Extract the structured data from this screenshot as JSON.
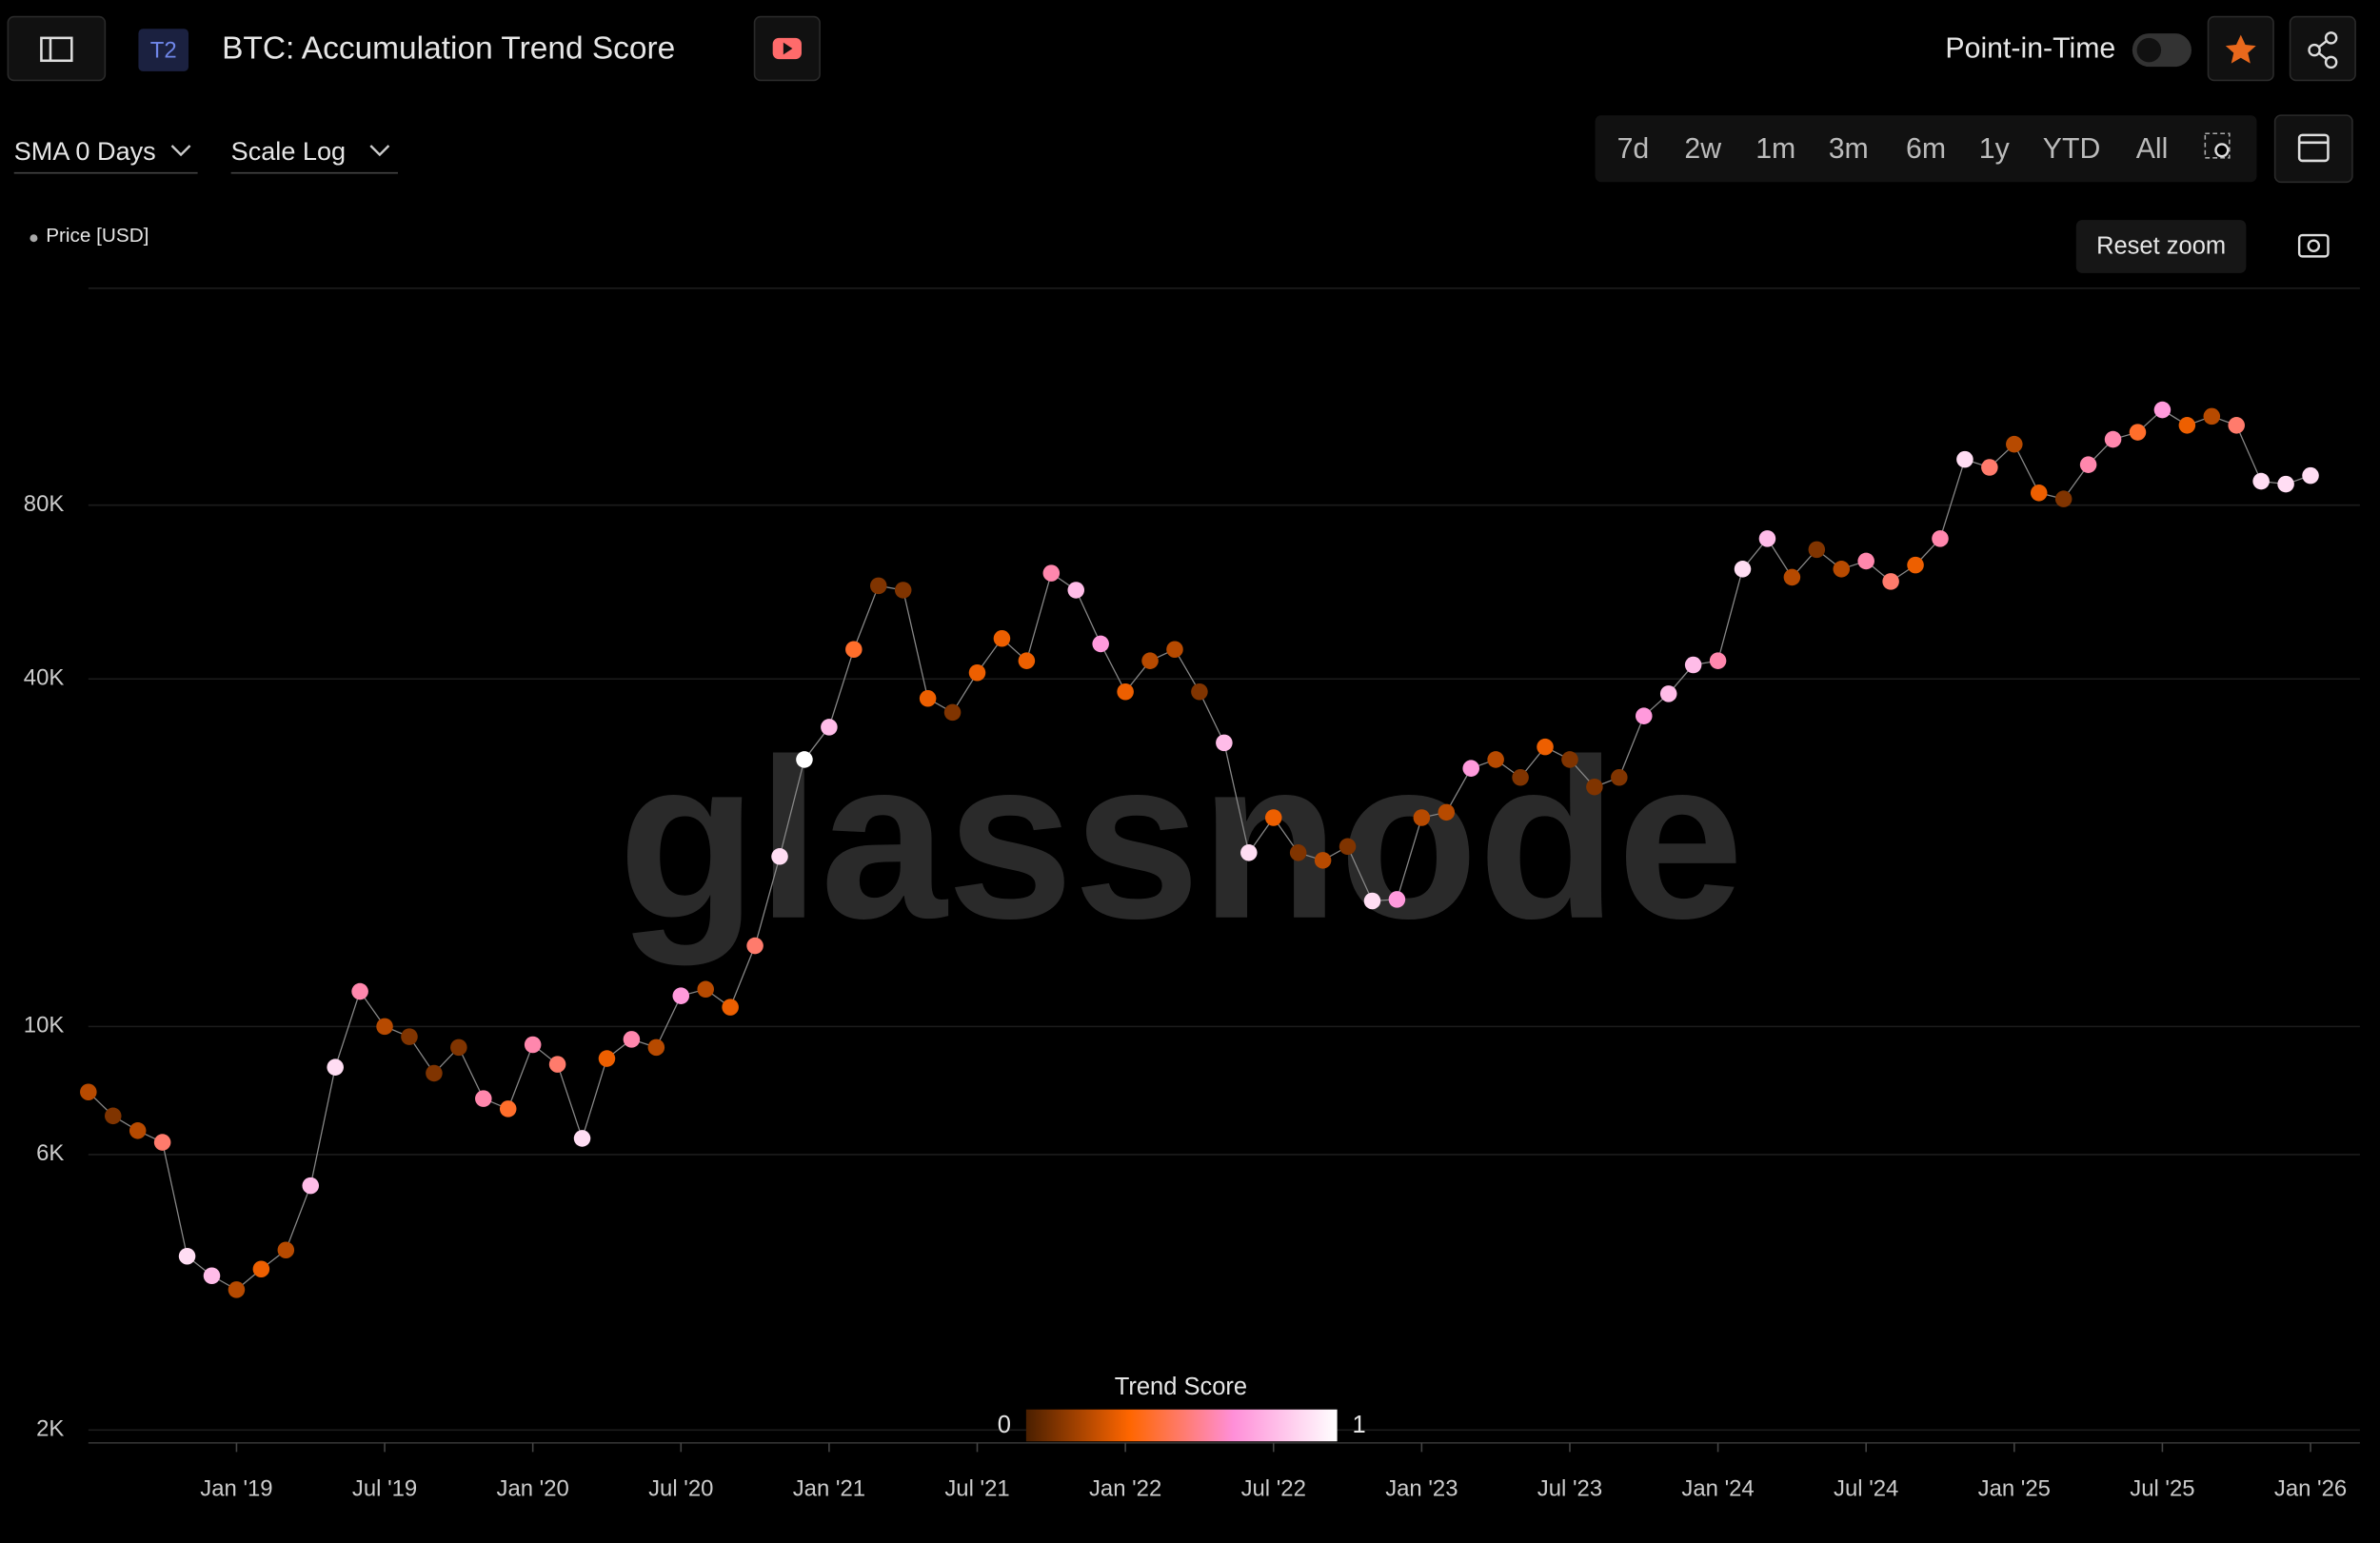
{
  "header": {
    "badge": "T2",
    "title": "BTC: Accumulation Trend Score",
    "toggle_label": "Point-in-Time"
  },
  "controls": {
    "sma": "SMA 0 Days",
    "scale": "Scale Log",
    "ranges": [
      "7d",
      "2w",
      "1m",
      "3m",
      "6m",
      "1y",
      "YTD",
      "All"
    ],
    "reset": "Reset zoom"
  },
  "chart_data": {
    "type": "scatter",
    "watermark": "glassnode",
    "colorbar_title": "Trend Score",
    "colorbar_ticks": [
      0,
      1
    ],
    "colorscale": [
      "#4a1f00",
      "#ff6600",
      "#ff8fd8",
      "#ffffff"
    ],
    "log_y": true,
    "x": [
      "2018-07",
      "2018-08",
      "2018-09",
      "2018-10",
      "2018-11",
      "2018-12",
      "2019-01",
      "2019-02",
      "2019-03",
      "2019-04",
      "2019-05",
      "2019-06",
      "2019-07",
      "2019-08",
      "2019-09",
      "2019-10",
      "2019-11",
      "2019-12",
      "2020-01",
      "2020-02",
      "2020-03",
      "2020-04",
      "2020-05",
      "2020-06",
      "2020-07",
      "2020-08",
      "2020-09",
      "2020-10",
      "2020-11",
      "2020-12",
      "2021-01",
      "2021-02",
      "2021-03",
      "2021-04",
      "2021-05",
      "2021-06",
      "2021-07",
      "2021-08",
      "2021-09",
      "2021-10",
      "2021-11",
      "2021-12",
      "2022-01",
      "2022-02",
      "2022-03",
      "2022-04",
      "2022-05",
      "2022-06",
      "2022-07",
      "2022-08",
      "2022-09",
      "2022-10",
      "2022-11",
      "2022-12",
      "2023-01",
      "2023-02",
      "2023-03",
      "2023-04",
      "2023-05",
      "2023-06",
      "2023-07",
      "2023-08",
      "2023-09",
      "2023-10",
      "2023-11",
      "2023-12",
      "2024-01",
      "2024-02",
      "2024-03",
      "2024-04",
      "2024-05",
      "2024-06",
      "2024-07",
      "2024-08",
      "2024-09",
      "2024-10",
      "2024-11",
      "2024-12",
      "2025-01",
      "2025-02",
      "2025-03",
      "2025-04",
      "2025-05",
      "2025-06",
      "2025-07",
      "2025-08",
      "2025-09",
      "2025-10",
      "2025-11",
      "2025-12",
      "2026-01"
    ],
    "series": [
      {
        "name": "Price [USD]",
        "values": [
          7700,
          7000,
          6600,
          6300,
          4000,
          3700,
          3500,
          3800,
          4100,
          5300,
          8500,
          11500,
          10000,
          9600,
          8300,
          9200,
          7500,
          7200,
          9300,
          8600,
          6400,
          8800,
          9500,
          9200,
          11300,
          11600,
          10800,
          13800,
          19700,
          29000,
          33000,
          45000,
          58000,
          57000,
          37000,
          35000,
          41000,
          47000,
          43000,
          61000,
          57000,
          46000,
          38000,
          43000,
          45000,
          38000,
          31000,
          20000,
          23000,
          20000,
          19400,
          20500,
          16500,
          16600,
          23000,
          23500,
          28000,
          29000,
          27000,
          30500,
          29000,
          26000,
          27000,
          34500,
          37700,
          42300,
          43000,
          62000,
          70000,
          60000,
          67000,
          62000,
          64000,
          59000,
          63000,
          70000,
          96000,
          93000,
          102000,
          84000,
          82000,
          94000,
          104000,
          107000,
          117000,
          110000,
          114000,
          110000,
          88000,
          87000,
          90000
        ],
        "scores": [
          0.2,
          0.1,
          0.2,
          0.5,
          0.9,
          0.8,
          0.2,
          0.3,
          0.2,
          0.8,
          0.9,
          0.6,
          0.2,
          0.1,
          0.1,
          0.1,
          0.6,
          0.4,
          0.6,
          0.5,
          0.9,
          0.3,
          0.6,
          0.2,
          0.7,
          0.2,
          0.3,
          0.5,
          0.9,
          1,
          0.8,
          0.4,
          0.1,
          0.1,
          0.3,
          0.1,
          0.3,
          0.3,
          0.3,
          0.6,
          0.8,
          0.7,
          0.3,
          0.2,
          0.2,
          0.1,
          0.8,
          0.9,
          0.3,
          0.1,
          0.2,
          0.1,
          0.9,
          0.7,
          0.2,
          0.2,
          0.7,
          0.2,
          0.1,
          0.3,
          0.1,
          0.1,
          0.1,
          0.7,
          0.8,
          0.8,
          0.6,
          0.9,
          0.8,
          0.2,
          0.1,
          0.2,
          0.6,
          0.5,
          0.3,
          0.6,
          0.9,
          0.5,
          0.2,
          0.3,
          0.1,
          0.6,
          0.6,
          0.4,
          0.7,
          0.3,
          0.2,
          0.5,
          0.9,
          0.9,
          0.9
        ]
      }
    ],
    "xlim": [
      "2018-07",
      "2026-03"
    ],
    "xticks": [
      {
        "value": "2019-01",
        "label": "Jan '19"
      },
      {
        "value": "2019-07",
        "label": "Jul '19"
      },
      {
        "value": "2020-01",
        "label": "Jan '20"
      },
      {
        "value": "2020-07",
        "label": "Jul '20"
      },
      {
        "value": "2021-01",
        "label": "Jan '21"
      },
      {
        "value": "2021-07",
        "label": "Jul '21"
      },
      {
        "value": "2022-01",
        "label": "Jan '22"
      },
      {
        "value": "2022-07",
        "label": "Jul '22"
      },
      {
        "value": "2023-01",
        "label": "Jan '23"
      },
      {
        "value": "2023-07",
        "label": "Jul '23"
      },
      {
        "value": "2024-01",
        "label": "Jan '24"
      },
      {
        "value": "2024-07",
        "label": "Jul '24"
      },
      {
        "value": "2025-01",
        "label": "Jan '25"
      },
      {
        "value": "2025-07",
        "label": "Jul '25"
      },
      {
        "value": "2026-01",
        "label": "Jan '26"
      }
    ],
    "ylim": [
      1900,
      190000
    ],
    "yticks": [
      {
        "value": 2000,
        "label": "2K"
      },
      {
        "value": 6000,
        "label": "6K"
      },
      {
        "value": 10000,
        "label": "10K"
      },
      {
        "value": 40000,
        "label": "40K"
      },
      {
        "value": 80000,
        "label": "80K"
      }
    ]
  }
}
